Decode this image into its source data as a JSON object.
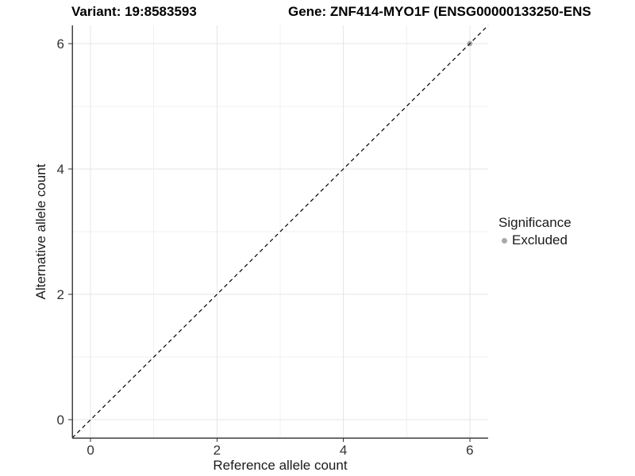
{
  "chart_data": {
    "type": "scatter",
    "title_left": "Variant: 19:8583593",
    "title_right": "Gene: ZNF414-MYO1F (ENSG00000133250-ENS",
    "xlabel": "Reference allele count",
    "ylabel": "Alternative allele count",
    "xlim": [
      -0.29,
      6.29
    ],
    "ylim": [
      -0.29,
      6.29
    ],
    "xticks": [
      0,
      2,
      4,
      6
    ],
    "yticks": [
      0,
      2,
      4,
      6
    ],
    "minor_xticks": [
      1,
      3,
      5
    ],
    "minor_yticks": [
      1,
      3,
      5
    ],
    "grid": "major+minor on white background",
    "identity_line": {
      "equation": "y = x",
      "style": "dashed",
      "color": "#000000",
      "spans": "full panel corner to corner"
    },
    "points": [
      {
        "x": 6,
        "y": 6,
        "significance": "Excluded",
        "color": "#a9a9a9"
      }
    ],
    "legend": {
      "title": "Significance",
      "position": "right",
      "items": [
        {
          "label": "Excluded",
          "color": "#a9a9a9"
        }
      ]
    },
    "colors": {
      "grid_major": "#e6e6e6",
      "grid_minor": "#f1f1f1",
      "axis_line": "#404040",
      "tick": "#333333",
      "tick_label": "#333333",
      "point": "#a9a9a9",
      "dashed_line": "#000000"
    }
  }
}
